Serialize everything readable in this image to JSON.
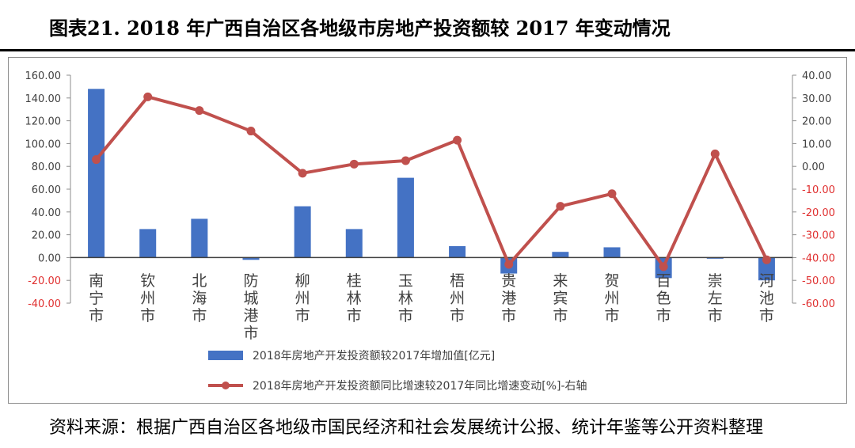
{
  "header": {
    "title": "图表21.   2018 年广西自治区各地级市房地产投资额较 2017 年变动情况"
  },
  "footer": {
    "source": "资料来源：根据广西自治区各地级市国民经济和社会发展统计公报、统计年鉴等公开资料整理"
  },
  "chart_data": {
    "type": "bar",
    "title": "",
    "categories": [
      "南宁市",
      "钦州市",
      "北海市",
      "防城港市",
      "柳州市",
      "桂林市",
      "玉林市",
      "梧州市",
      "贵港市",
      "来宾市",
      "贺州市",
      "百色市",
      "崇左市",
      "河池市"
    ],
    "series": [
      {
        "name": "2018年房地产开发投资额较2017年增加值[亿元]",
        "type": "bar",
        "axis": "left",
        "color": "#4472c4",
        "values": [
          148,
          25,
          34,
          -2,
          45,
          25,
          70,
          10,
          -14,
          5,
          9,
          -18,
          -1,
          -20
        ]
      },
      {
        "name": "2018年房地产开发投资额同比增速较2017年同比增速变动[%]-右轴",
        "type": "line",
        "axis": "right",
        "color": "#c0504d",
        "values": [
          3,
          30.5,
          24.5,
          15.5,
          -3,
          1,
          2.5,
          11.5,
          -43,
          -17.5,
          -12,
          -44,
          5.5,
          -41
        ]
      }
    ],
    "left_axis": {
      "ylim": [
        -40,
        160
      ],
      "ticks": [
        "160.00",
        "140.00",
        "120.00",
        "100.00",
        "80.00",
        "60.00",
        "40.00",
        "20.00",
        "0.00",
        "-20.00",
        "-40.00"
      ]
    },
    "right_axis": {
      "ylim": [
        -60,
        40
      ],
      "ticks": [
        "40.00",
        "30.00",
        "20.00",
        "10.00",
        "0.00",
        "-10.00",
        "-20.00",
        "-30.00",
        "-40.00",
        "-50.00",
        "-60.00"
      ]
    },
    "legend_position": "bottom",
    "grid": false
  }
}
